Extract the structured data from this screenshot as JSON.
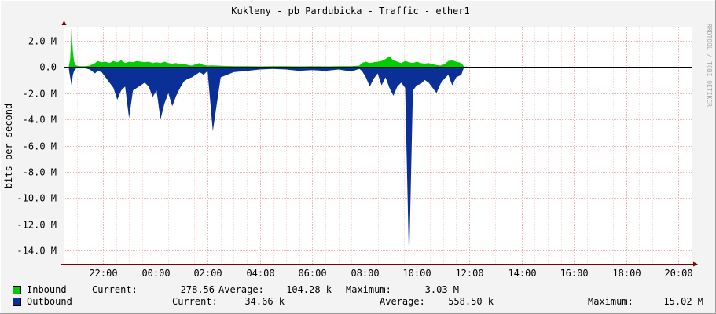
{
  "colors": {
    "background": "#f3f3f3",
    "plot_background": "#ffffff",
    "grid": "#f0b4b4",
    "inbound": "#00cc00",
    "outbound": "#0a2f96",
    "axis": "#800000"
  },
  "chart_data": {
    "type": "area",
    "title": "Kukleny - pb Pardubicka - Traffic - ether1",
    "ylabel": "bits per second",
    "watermark": "RRDTOOL / TOBI OETIKER",
    "ylim": [
      -15.0,
      3.0
    ],
    "y_unit": "M",
    "y_ticks": [
      {
        "value": 2.0,
        "label": "2.0 M"
      },
      {
        "value": 0.0,
        "label": "0.0"
      },
      {
        "value": -2.0,
        "label": "-2.0 M"
      },
      {
        "value": -4.0,
        "label": "-4.0 M"
      },
      {
        "value": -6.0,
        "label": "-6.0 M"
      },
      {
        "value": -8.0,
        "label": "-8.0 M"
      },
      {
        "value": -10.0,
        "label": "-10.0 M"
      },
      {
        "value": -12.0,
        "label": "-12.0 M"
      },
      {
        "value": -14.0,
        "label": "-14.0 M"
      }
    ],
    "x_unit": "hours",
    "xlim": [
      20.5,
      44.5
    ],
    "x_ticks": [
      {
        "value": 22,
        "label": "22:00"
      },
      {
        "value": 24,
        "label": "00:00"
      },
      {
        "value": 26,
        "label": "02:00"
      },
      {
        "value": 28,
        "label": "04:00"
      },
      {
        "value": 30,
        "label": "06:00"
      },
      {
        "value": 32,
        "label": "08:00"
      },
      {
        "value": 34,
        "label": "10:00"
      },
      {
        "value": 36,
        "label": "12:00"
      },
      {
        "value": 38,
        "label": "14:00"
      },
      {
        "value": 40,
        "label": "16:00"
      },
      {
        "value": 42,
        "label": "18:00"
      },
      {
        "value": 44,
        "label": "20:00"
      }
    ],
    "series": [
      {
        "name": "Inbound",
        "color": "#00cc00",
        "x": [
          20.7,
          20.75,
          20.8,
          20.85,
          20.9,
          20.95,
          21.0,
          21.1,
          21.3,
          21.5,
          21.7,
          21.8,
          21.95,
          22.1,
          22.25,
          22.4,
          22.55,
          22.7,
          22.85,
          23.0,
          23.15,
          23.3,
          23.45,
          23.6,
          23.75,
          23.9,
          24.05,
          24.2,
          24.35,
          24.5,
          24.65,
          24.8,
          24.95,
          25.1,
          25.25,
          25.4,
          25.55,
          25.7,
          25.85,
          26.0,
          26.2,
          26.5,
          27.0,
          27.5,
          28.0,
          28.5,
          29.0,
          29.5,
          30.0,
          30.5,
          31.0,
          31.5,
          31.8,
          31.9,
          32.05,
          32.2,
          32.35,
          32.5,
          32.65,
          32.8,
          32.95,
          33.1,
          33.25,
          33.4,
          33.55,
          33.7,
          33.85,
          34.0,
          34.15,
          34.3,
          34.45,
          34.6,
          34.75,
          34.9,
          35.05,
          35.2,
          35.35,
          35.5,
          35.6,
          35.7,
          35.8,
          36.5,
          37.0,
          38.0,
          39.0,
          40.0,
          41.0,
          42.0,
          43.0,
          44.0,
          44.5
        ],
        "values": [
          0.1,
          0.6,
          3.03,
          1.2,
          0.4,
          0.15,
          0.1,
          0.05,
          0.05,
          0.1,
          0.3,
          0.45,
          0.35,
          0.4,
          0.3,
          0.45,
          0.35,
          0.5,
          0.3,
          0.4,
          0.35,
          0.45,
          0.4,
          0.35,
          0.4,
          0.3,
          0.35,
          0.3,
          0.4,
          0.3,
          0.25,
          0.3,
          0.2,
          0.25,
          0.15,
          0.1,
          0.2,
          0.3,
          0.15,
          0.1,
          0.12,
          0.08,
          0.06,
          0.05,
          0.04,
          0.06,
          0.05,
          0.04,
          0.05,
          0.04,
          0.06,
          0.05,
          0.1,
          0.3,
          0.4,
          0.3,
          0.35,
          0.4,
          0.45,
          0.6,
          0.8,
          0.5,
          0.4,
          0.3,
          0.45,
          0.35,
          0.3,
          0.4,
          0.3,
          0.25,
          0.3,
          0.2,
          0.15,
          0.1,
          0.2,
          0.45,
          0.5,
          0.4,
          0.35,
          0.3,
          0.02,
          0.0,
          0.0,
          0.0,
          0.0,
          0.0,
          0.0,
          0.0,
          0.0,
          0.0,
          0.0
        ]
      },
      {
        "name": "Outbound",
        "color": "#0a2f96",
        "x": [
          20.7,
          20.75,
          20.8,
          20.85,
          20.9,
          20.95,
          21.0,
          21.1,
          21.3,
          21.5,
          21.7,
          21.8,
          21.95,
          22.1,
          22.25,
          22.4,
          22.55,
          22.7,
          22.85,
          23.0,
          23.15,
          23.3,
          23.45,
          23.6,
          23.75,
          23.9,
          24.05,
          24.2,
          24.35,
          24.5,
          24.65,
          24.8,
          24.95,
          25.1,
          25.25,
          25.4,
          25.55,
          25.7,
          25.85,
          26.0,
          26.2,
          26.5,
          27.0,
          27.5,
          28.0,
          28.5,
          29.0,
          29.5,
          30.0,
          30.5,
          31.0,
          31.5,
          31.8,
          31.9,
          32.05,
          32.2,
          32.35,
          32.5,
          32.65,
          32.8,
          32.95,
          33.1,
          33.25,
          33.4,
          33.55,
          33.7,
          33.85,
          34.0,
          34.15,
          34.3,
          34.45,
          34.6,
          34.75,
          34.9,
          35.05,
          35.2,
          35.35,
          35.5,
          35.6,
          35.7,
          35.8,
          36.5,
          37.0,
          38.0,
          39.0,
          40.0,
          41.0,
          42.0,
          43.0,
          44.0,
          44.5
        ],
        "values": [
          -0.2,
          -0.8,
          -1.4,
          -0.6,
          -0.3,
          -0.15,
          -0.1,
          -0.1,
          -0.1,
          -0.2,
          -0.5,
          -0.3,
          -0.4,
          -0.8,
          -1.2,
          -1.6,
          -2.5,
          -1.8,
          -1.5,
          -3.9,
          -1.8,
          -1.6,
          -1.4,
          -1.2,
          -1.5,
          -2.3,
          -1.8,
          -4.0,
          -2.8,
          -2.0,
          -3.0,
          -2.2,
          -1.6,
          -1.1,
          -0.9,
          -0.8,
          -0.6,
          -0.4,
          -0.6,
          -0.3,
          -4.9,
          -0.8,
          -0.4,
          -0.3,
          -0.2,
          -0.15,
          -0.2,
          -0.3,
          -0.25,
          -0.3,
          -0.2,
          -0.35,
          -0.15,
          -0.3,
          -0.8,
          -1.5,
          -0.9,
          -0.5,
          -1.4,
          -0.8,
          -1.6,
          -2.2,
          -1.5,
          -1.2,
          -1.6,
          -15.0,
          -1.8,
          -1.4,
          -1.3,
          -1.0,
          -1.2,
          -1.6,
          -2.0,
          -1.3,
          -0.9,
          -0.6,
          -1.4,
          -0.8,
          -0.7,
          -0.6,
          -0.03,
          -0.05,
          -0.04,
          -0.05,
          -0.03,
          -0.02,
          -0.03,
          -0.02,
          -0.02,
          -0.02,
          -0.02
        ]
      }
    ]
  },
  "legend": {
    "inbound": {
      "name": "Inbound",
      "current_label": "Current:",
      "current": "278.56",
      "average_label": "Average:",
      "average": "104.28 k",
      "maximum_label": "Maximum:",
      "maximum": "3.03 M"
    },
    "outbound": {
      "name": "Outbound",
      "current_label": "Current:",
      "current": "34.66 k",
      "average_label": "Average:",
      "average": "558.50 k",
      "maximum_label": "Maximum:",
      "maximum": "15.02 M"
    }
  }
}
